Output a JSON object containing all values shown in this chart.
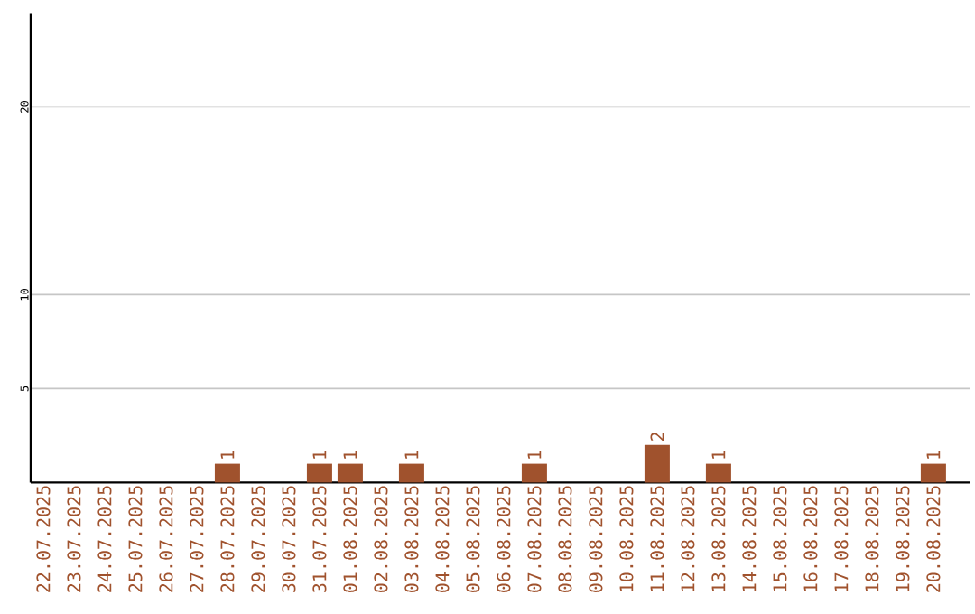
{
  "chart_data": {
    "type": "bar",
    "categories": [
      "22.07.2025",
      "23.07.2025",
      "24.07.2025",
      "25.07.2025",
      "26.07.2025",
      "27.07.2025",
      "28.07.2025",
      "29.07.2025",
      "30.07.2025",
      "31.07.2025",
      "01.08.2025",
      "02.08.2025",
      "03.08.2025",
      "04.08.2025",
      "05.08.2025",
      "06.08.2025",
      "07.08.2025",
      "08.08.2025",
      "09.08.2025",
      "10.08.2025",
      "11.08.2025",
      "12.08.2025",
      "13.08.2025",
      "14.08.2025",
      "15.08.2025",
      "16.08.2025",
      "17.08.2025",
      "18.08.2025",
      "19.08.2025",
      "20.08.2025"
    ],
    "values": [
      0,
      0,
      0,
      0,
      0,
      0,
      1,
      0,
      0,
      1,
      1,
      0,
      1,
      0,
      0,
      0,
      1,
      0,
      0,
      0,
      2,
      0,
      1,
      0,
      0,
      0,
      0,
      0,
      0,
      1
    ],
    "value_labels": [
      null,
      null,
      null,
      null,
      null,
      null,
      "1",
      null,
      null,
      "1",
      "1",
      null,
      "1",
      null,
      null,
      null,
      "1",
      null,
      null,
      null,
      "2",
      null,
      "1",
      null,
      null,
      null,
      null,
      null,
      null,
      "1"
    ],
    "color": "#a0522d",
    "ylim": [
      0,
      25
    ],
    "yticks": [
      5,
      10,
      20
    ],
    "grid": "y"
  }
}
